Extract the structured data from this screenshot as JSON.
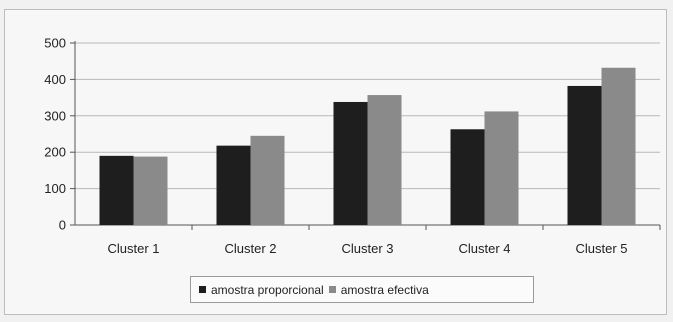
{
  "chart_data": {
    "type": "bar",
    "categories": [
      "Cluster 1",
      "Cluster 2",
      "Cluster 3",
      "Cluster 4",
      "Cluster 5"
    ],
    "series": [
      {
        "name": "amostra proporcional",
        "values": [
          190,
          218,
          338,
          263,
          382
        ],
        "color": "#1e1e1e"
      },
      {
        "name": "amostra efectiva",
        "values": [
          188,
          245,
          357,
          312,
          432
        ],
        "color": "#8a8a8a"
      }
    ],
    "yticks": [
      0,
      100,
      200,
      300,
      400,
      500
    ],
    "ylim": [
      0,
      500
    ],
    "grid": true,
    "legend_position": "bottom"
  }
}
